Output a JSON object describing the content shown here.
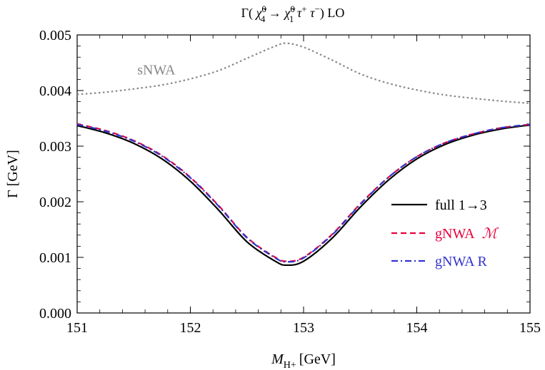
{
  "chart_data": {
    "type": "line",
    "title": "Γ( χ̃⁰₄ → χ̃⁰₁ τ⁺ τ⁻ )  LO",
    "xlabel": "M_H+ [GeV]",
    "xlabel_main": "M",
    "xlabel_sub": "H+",
    "xlabel_unit": "[GeV]",
    "ylabel": "Γ  [GeV]",
    "xlim": [
      151,
      155
    ],
    "ylim": [
      0.0,
      0.005
    ],
    "xticks": [
      151,
      152,
      153,
      154,
      155
    ],
    "xtick_labels": [
      "151",
      "152",
      "153",
      "154",
      "155"
    ],
    "yticks": [
      0.0,
      0.001,
      0.002,
      0.003,
      0.004,
      0.005
    ],
    "ytick_labels": [
      "0.000",
      "0.001",
      "0.002",
      "0.003",
      "0.004",
      "0.005"
    ],
    "grid": false,
    "legend_position": "right",
    "annotation": {
      "text": "sNWA",
      "x": 151.7,
      "y": 0.00438,
      "color": "#888888"
    },
    "series": [
      {
        "name": "sNWA",
        "label": "",
        "color": "#888888",
        "dash": "dotted",
        "x": [
          151.0,
          151.25,
          151.5,
          151.75,
          152.0,
          152.25,
          152.5,
          152.75,
          152.85,
          153.0,
          153.25,
          153.5,
          153.75,
          154.0,
          154.25,
          154.5,
          154.75,
          155.0
        ],
        "y": [
          0.00393,
          0.00397,
          0.00403,
          0.0041,
          0.00421,
          0.00436,
          0.00458,
          0.0048,
          0.00485,
          0.00478,
          0.00455,
          0.0043,
          0.00413,
          0.00401,
          0.00392,
          0.00386,
          0.00381,
          0.00377
        ]
      },
      {
        "name": "full 1→3",
        "label": "full 1→3",
        "color": "#000000",
        "dash": "solid",
        "x": [
          151.0,
          151.25,
          151.5,
          151.75,
          152.0,
          152.25,
          152.5,
          152.75,
          152.85,
          153.0,
          153.25,
          153.5,
          153.75,
          154.0,
          154.25,
          154.5,
          154.75,
          155.0
        ],
        "y": [
          0.00337,
          0.00324,
          0.00305,
          0.00277,
          0.00237,
          0.00185,
          0.00128,
          0.00093,
          0.00086,
          0.00093,
          0.00134,
          0.0019,
          0.00239,
          0.00277,
          0.00303,
          0.0032,
          0.00331,
          0.00338
        ]
      },
      {
        "name": "gNWA M",
        "label": "gNWA",
        "label_symbol": "ℳ",
        "color": "#e8003c",
        "dash": "dashed",
        "x": [
          151.0,
          151.25,
          151.5,
          151.75,
          152.0,
          152.25,
          152.5,
          152.75,
          152.85,
          153.0,
          153.25,
          153.5,
          153.75,
          154.0,
          154.25,
          154.5,
          154.75,
          155.0
        ],
        "y": [
          0.0034,
          0.00328,
          0.0031,
          0.00283,
          0.00244,
          0.00193,
          0.00136,
          0.001,
          0.00093,
          0.001,
          0.00141,
          0.00196,
          0.00244,
          0.00281,
          0.00306,
          0.00322,
          0.00333,
          0.00339
        ]
      },
      {
        "name": "gNWA R",
        "label": "gNWA  R",
        "color": "#3333cc",
        "dash": "dashdot",
        "x": [
          151.0,
          151.25,
          151.5,
          151.75,
          152.0,
          152.25,
          152.5,
          152.75,
          152.85,
          153.0,
          153.25,
          153.5,
          153.75,
          154.0,
          154.25,
          154.5,
          154.75,
          155.0
        ],
        "y": [
          0.00339,
          0.00327,
          0.00309,
          0.00282,
          0.00243,
          0.00192,
          0.00135,
          0.00099,
          0.00092,
          0.00099,
          0.0014,
          0.00195,
          0.00244,
          0.00281,
          0.00306,
          0.00322,
          0.00333,
          0.00339
        ]
      }
    ]
  }
}
